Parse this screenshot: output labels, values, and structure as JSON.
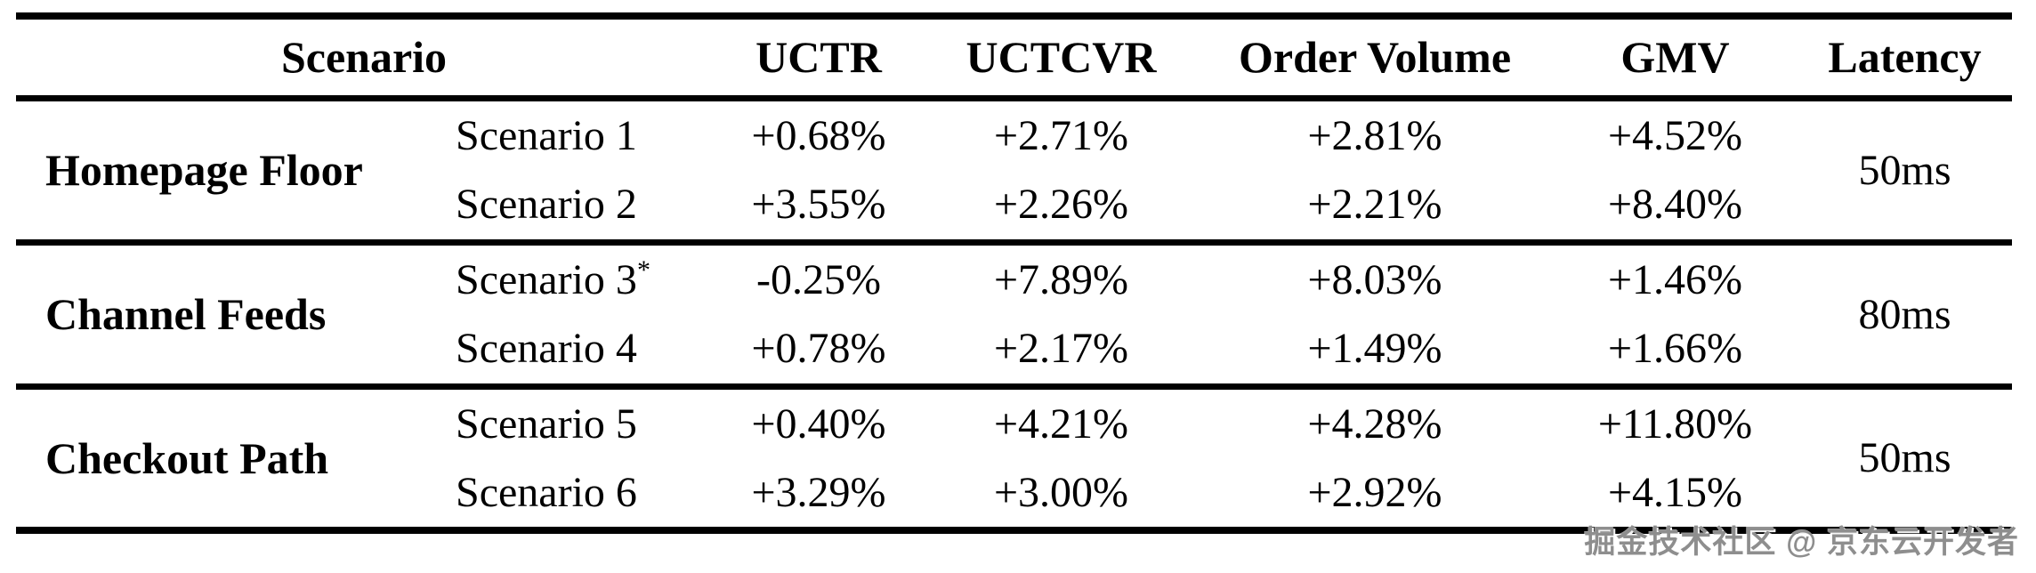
{
  "table": {
    "headers": {
      "scenario": "Scenario",
      "uctr": "UCTR",
      "uctcvr": "UCTCVR",
      "order_volume": "Order Volume",
      "gmv": "GMV",
      "latency": "Latency"
    },
    "groups": [
      {
        "name": "Homepage Floor",
        "latency": "50ms",
        "rows": [
          {
            "scenario": "Scenario 1",
            "sup": "",
            "uctr": "+0.68%",
            "uctcvr": "+2.71%",
            "order_volume": "+2.81%",
            "gmv": "+4.52%"
          },
          {
            "scenario": "Scenario 2",
            "sup": "",
            "uctr": "+3.55%",
            "uctcvr": "+2.26%",
            "order_volume": "+2.21%",
            "gmv": "+8.40%"
          }
        ]
      },
      {
        "name": "Channel Feeds",
        "latency": "80ms",
        "rows": [
          {
            "scenario": "Scenario 3",
            "sup": "*",
            "uctr": "-0.25%",
            "uctcvr": "+7.89%",
            "order_volume": "+8.03%",
            "gmv": "+1.46%"
          },
          {
            "scenario": "Scenario 4",
            "sup": "",
            "uctr": "+0.78%",
            "uctcvr": "+2.17%",
            "order_volume": "+1.49%",
            "gmv": "+1.66%"
          }
        ]
      },
      {
        "name": "Checkout Path",
        "latency": "50ms",
        "rows": [
          {
            "scenario": "Scenario 5",
            "sup": "",
            "uctr": "+0.40%",
            "uctcvr": "+4.21%",
            "order_volume": "+4.28%",
            "gmv": "+11.80%"
          },
          {
            "scenario": "Scenario 6",
            "sup": "",
            "uctr": "+3.29%",
            "uctcvr": "+3.00%",
            "order_volume": "+2.92%",
            "gmv": "+4.15%"
          }
        ]
      }
    ]
  },
  "watermark": {
    "text": "掘金技术社区 @ 京东云开发者"
  }
}
